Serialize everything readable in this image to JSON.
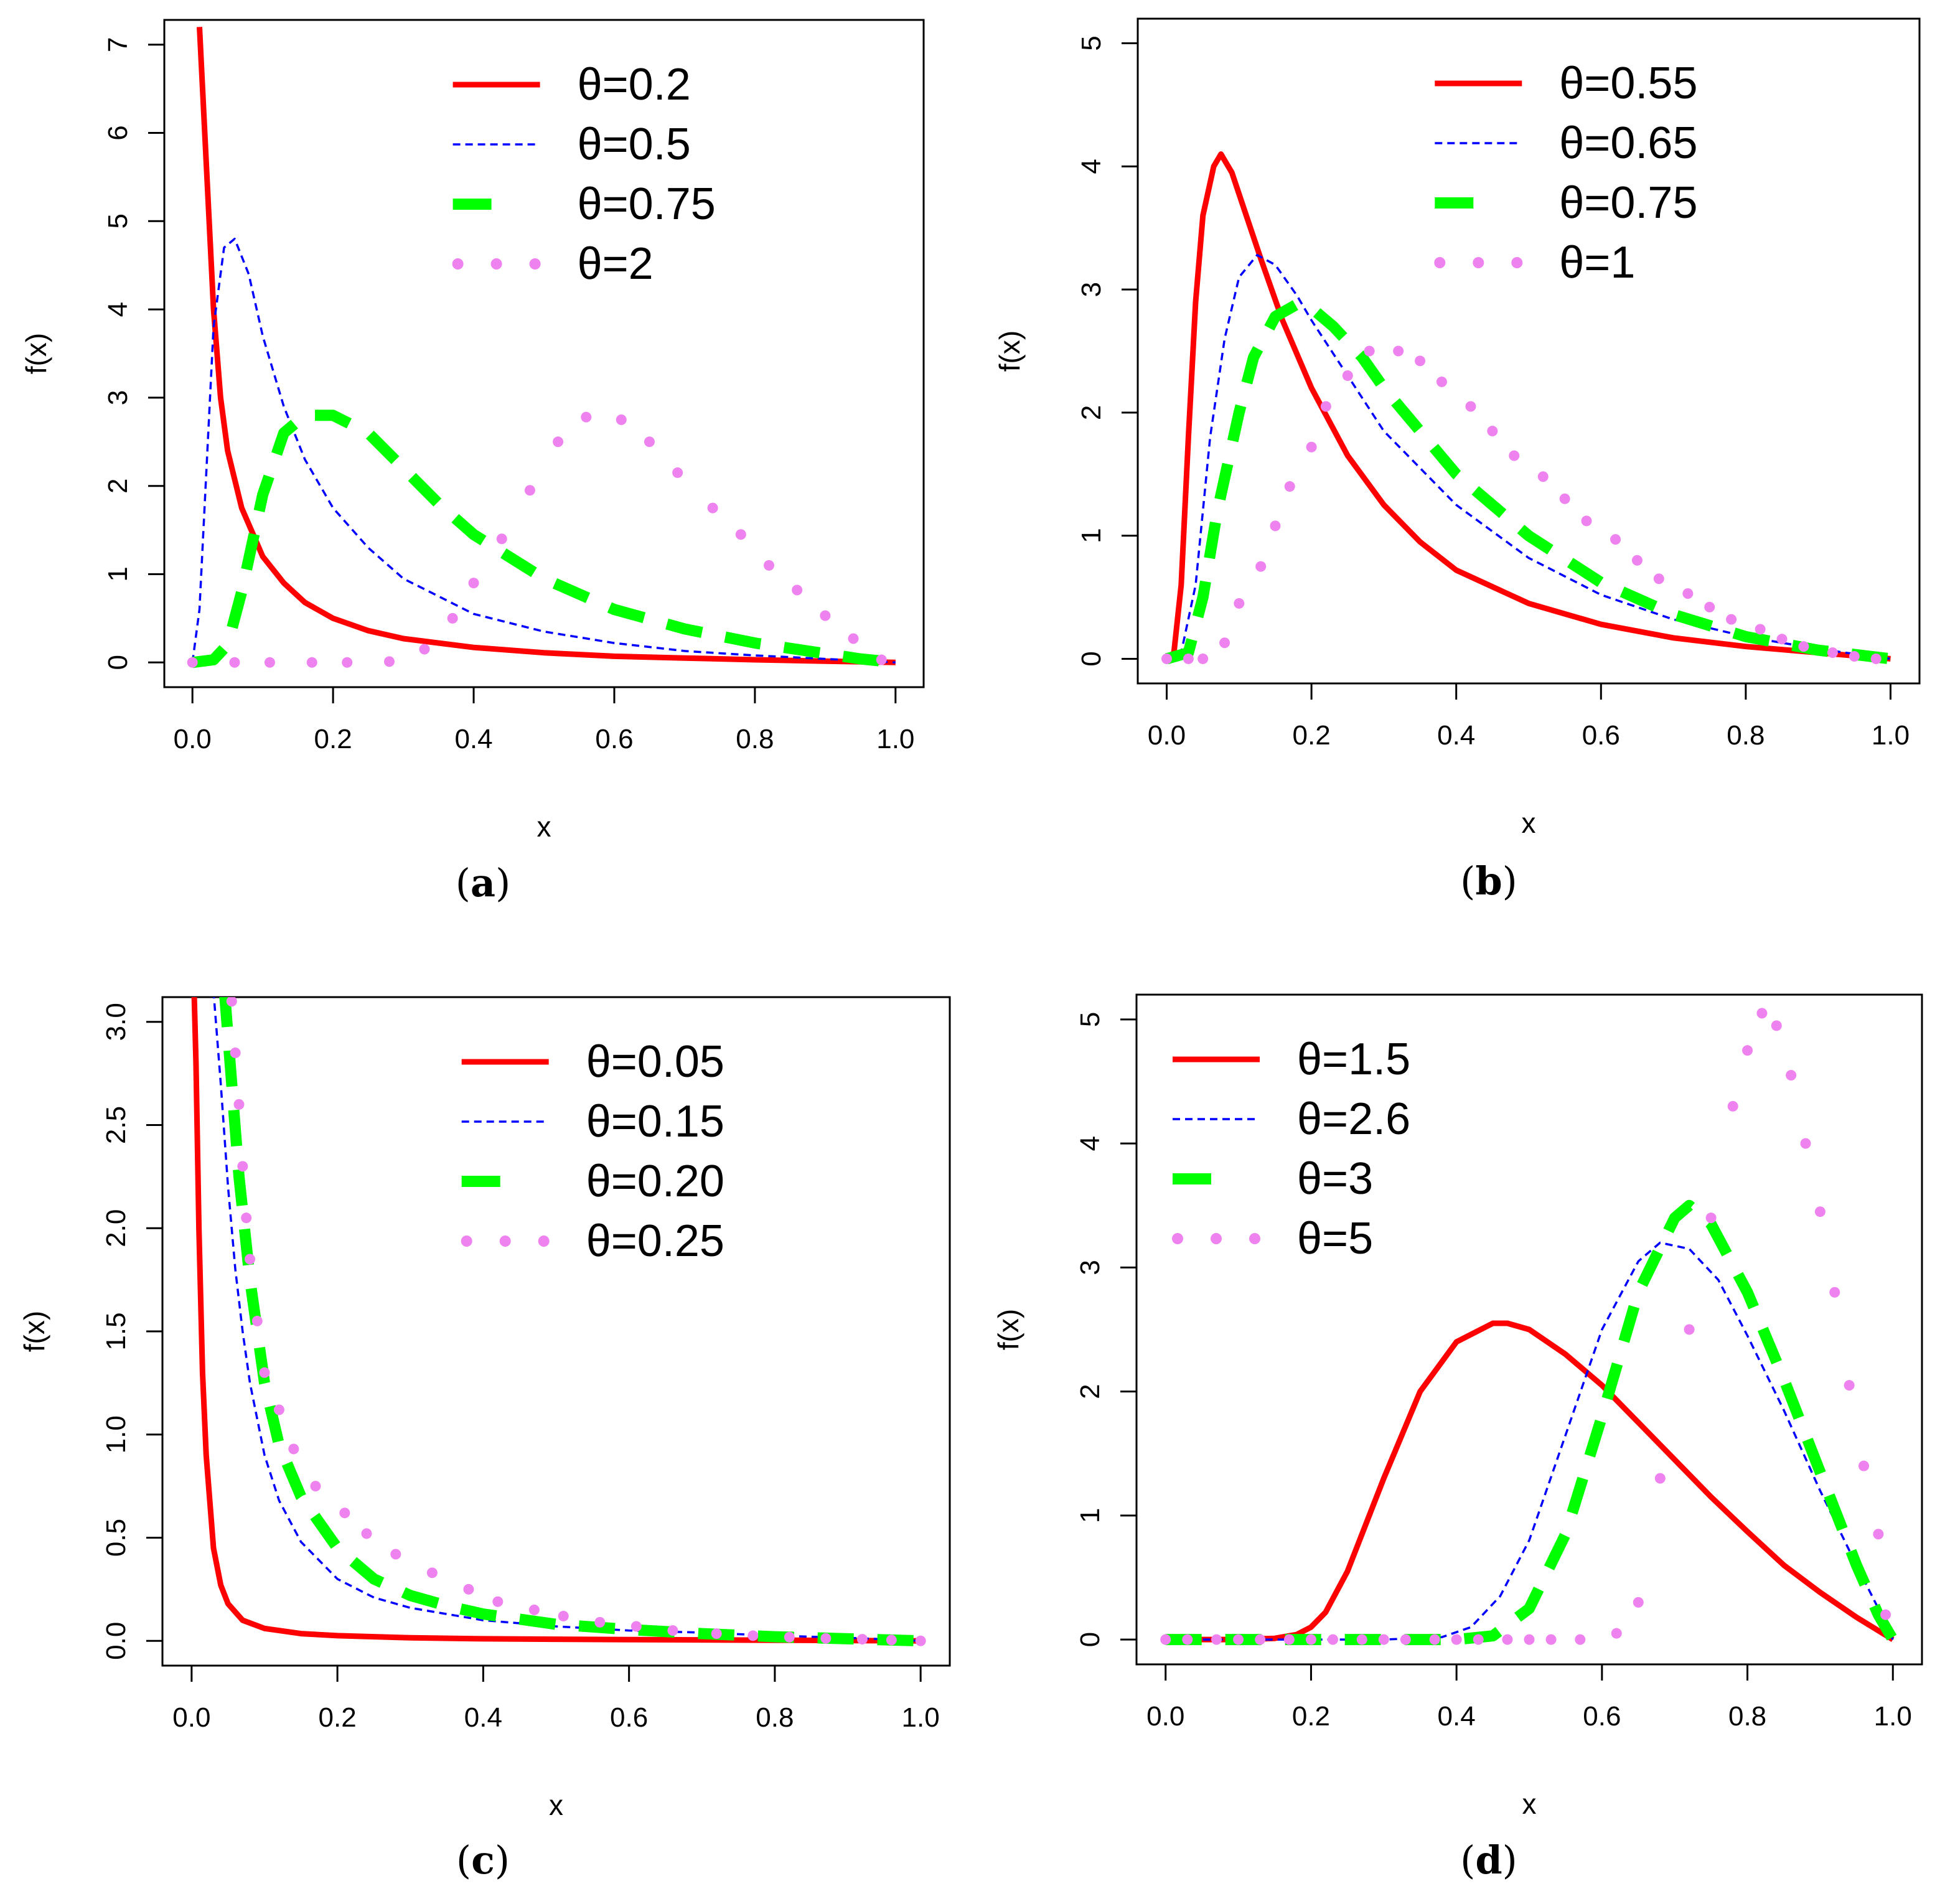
{
  "chart_data": [
    {
      "id": "a",
      "type": "line",
      "caption_letter": "a",
      "xlabel": "x",
      "ylabel": "f(x)",
      "xlim": [
        0,
        1
      ],
      "ylim": [
        0,
        7
      ],
      "x_ticks": [
        "0.0",
        "0.2",
        "0.4",
        "0.6",
        "0.8",
        "1.0"
      ],
      "y_ticks": [
        "0",
        "1",
        "2",
        "3",
        "4",
        "5",
        "6",
        "7"
      ],
      "legend_position": "top-right",
      "series": [
        {
          "name": "θ=0.2",
          "style": "solid",
          "color": "#ff0000",
          "x": [
            0.01,
            0.02,
            0.03,
            0.04,
            0.05,
            0.07,
            0.1,
            0.13,
            0.16,
            0.2,
            0.25,
            0.3,
            0.4,
            0.5,
            0.6,
            0.7,
            0.8,
            0.9,
            1.0
          ],
          "y": [
            7.2,
            5.6,
            4.0,
            3.0,
            2.4,
            1.75,
            1.2,
            0.9,
            0.68,
            0.5,
            0.36,
            0.27,
            0.17,
            0.11,
            0.07,
            0.05,
            0.03,
            0.015,
            0.0
          ]
        },
        {
          "name": "θ=0.5",
          "style": "dotted",
          "color": "#0000ff",
          "x": [
            0.0,
            0.01,
            0.02,
            0.03,
            0.045,
            0.06,
            0.08,
            0.1,
            0.13,
            0.16,
            0.2,
            0.25,
            0.3,
            0.4,
            0.5,
            0.6,
            0.7,
            0.8,
            0.9,
            1.0
          ],
          "y": [
            0.0,
            0.6,
            2.2,
            3.8,
            4.7,
            4.8,
            4.4,
            3.7,
            2.9,
            2.3,
            1.75,
            1.3,
            0.95,
            0.55,
            0.35,
            0.22,
            0.13,
            0.08,
            0.04,
            0.0
          ]
        },
        {
          "name": "θ=0.75",
          "style": "dashed",
          "color": "#00ff00",
          "x": [
            0.0,
            0.03,
            0.05,
            0.07,
            0.1,
            0.13,
            0.16,
            0.2,
            0.25,
            0.3,
            0.35,
            0.4,
            0.5,
            0.6,
            0.7,
            0.8,
            0.9,
            0.95,
            1.0
          ],
          "y": [
            0.0,
            0.03,
            0.2,
            0.8,
            1.9,
            2.6,
            2.8,
            2.8,
            2.6,
            2.2,
            1.8,
            1.45,
            0.95,
            0.6,
            0.38,
            0.22,
            0.1,
            0.04,
            0.0
          ]
        },
        {
          "name": "θ=2",
          "style": "dots",
          "color": "#ee82ee",
          "x": [
            0.0,
            0.06,
            0.11,
            0.17,
            0.22,
            0.28,
            0.33,
            0.37,
            0.4,
            0.44,
            0.48,
            0.52,
            0.56,
            0.61,
            0.65,
            0.69,
            0.74,
            0.78,
            0.82,
            0.86,
            0.9,
            0.94,
            0.98
          ],
          "y": [
            0.0,
            0.0,
            0.0,
            0.0,
            0.0,
            0.01,
            0.15,
            0.5,
            0.9,
            1.4,
            1.95,
            2.5,
            2.78,
            2.75,
            2.5,
            2.15,
            1.75,
            1.45,
            1.1,
            0.82,
            0.53,
            0.27,
            0.03
          ]
        }
      ]
    },
    {
      "id": "b",
      "type": "line",
      "caption_letter": "b",
      "xlabel": "x",
      "ylabel": "f(x)",
      "xlim": [
        0,
        1
      ],
      "ylim": [
        0,
        5
      ],
      "x_ticks": [
        "0.0",
        "0.2",
        "0.4",
        "0.6",
        "0.8",
        "1.0"
      ],
      "y_ticks": [
        "0",
        "1",
        "2",
        "3",
        "4",
        "5"
      ],
      "legend_position": "top-right",
      "series": [
        {
          "name": "θ=0.55",
          "style": "solid",
          "color": "#ff0000",
          "x": [
            0.0,
            0.01,
            0.02,
            0.03,
            0.04,
            0.05,
            0.065,
            0.075,
            0.09,
            0.11,
            0.13,
            0.16,
            0.2,
            0.25,
            0.3,
            0.35,
            0.4,
            0.5,
            0.6,
            0.7,
            0.8,
            0.9,
            1.0
          ],
          "y": [
            0.0,
            0.05,
            0.6,
            1.8,
            2.9,
            3.6,
            4.0,
            4.1,
            3.95,
            3.6,
            3.25,
            2.75,
            2.2,
            1.65,
            1.25,
            0.95,
            0.72,
            0.45,
            0.28,
            0.17,
            0.1,
            0.05,
            0.0
          ]
        },
        {
          "name": "θ=0.65",
          "style": "dotted",
          "color": "#0000ff",
          "x": [
            0.0,
            0.02,
            0.04,
            0.06,
            0.08,
            0.1,
            0.125,
            0.15,
            0.18,
            0.2,
            0.25,
            0.3,
            0.4,
            0.5,
            0.6,
            0.7,
            0.8,
            0.9,
            1.0
          ],
          "y": [
            0.0,
            0.05,
            0.6,
            1.8,
            2.6,
            3.1,
            3.28,
            3.2,
            2.95,
            2.75,
            2.3,
            1.85,
            1.25,
            0.82,
            0.52,
            0.32,
            0.18,
            0.08,
            0.0
          ]
        },
        {
          "name": "θ=0.75",
          "style": "dashed",
          "color": "#00ff00",
          "x": [
            0.0,
            0.03,
            0.05,
            0.07,
            0.1,
            0.12,
            0.15,
            0.18,
            0.2,
            0.23,
            0.27,
            0.3,
            0.35,
            0.4,
            0.5,
            0.6,
            0.7,
            0.8,
            0.9,
            1.0
          ],
          "y": [
            0.0,
            0.05,
            0.5,
            1.2,
            2.0,
            2.45,
            2.78,
            2.88,
            2.85,
            2.7,
            2.45,
            2.2,
            1.85,
            1.5,
            1.0,
            0.62,
            0.36,
            0.18,
            0.07,
            0.0
          ]
        },
        {
          "name": "θ=1",
          "style": "dots",
          "color": "#ee82ee",
          "x": [
            0.0,
            0.03,
            0.05,
            0.08,
            0.1,
            0.13,
            0.15,
            0.17,
            0.2,
            0.22,
            0.25,
            0.28,
            0.32,
            0.35,
            0.38,
            0.42,
            0.45,
            0.48,
            0.52,
            0.55,
            0.58,
            0.62,
            0.65,
            0.68,
            0.72,
            0.75,
            0.78,
            0.82,
            0.85,
            0.88,
            0.92,
            0.95,
            0.98
          ],
          "y": [
            0.0,
            0.0,
            0.0,
            0.13,
            0.45,
            0.75,
            1.08,
            1.4,
            1.72,
            2.05,
            2.3,
            2.5,
            2.5,
            2.42,
            2.25,
            2.05,
            1.85,
            1.65,
            1.48,
            1.3,
            1.12,
            0.97,
            0.8,
            0.65,
            0.53,
            0.42,
            0.32,
            0.24,
            0.16,
            0.1,
            0.05,
            0.02,
            0.0
          ]
        }
      ]
    },
    {
      "id": "c",
      "type": "line",
      "caption_letter": "c",
      "xlabel": "x",
      "ylabel": "f(x)",
      "xlim": [
        0,
        1
      ],
      "ylim": [
        0,
        3
      ],
      "x_ticks": [
        "0.0",
        "0.2",
        "0.4",
        "0.6",
        "0.8",
        "1.0"
      ],
      "y_ticks": [
        "0.0",
        "0.5",
        "1.0",
        "1.5",
        "2.0",
        "2.5",
        "3.0"
      ],
      "legend_position": "top-right",
      "series": [
        {
          "name": "θ=0.05",
          "style": "solid",
          "color": "#ff0000",
          "x": [
            0.003,
            0.006,
            0.01,
            0.015,
            0.02,
            0.03,
            0.04,
            0.05,
            0.07,
            0.1,
            0.15,
            0.2,
            0.3,
            0.4,
            0.5,
            0.6,
            0.8,
            1.0
          ],
          "y": [
            3.2,
            2.8,
            2.0,
            1.3,
            0.9,
            0.45,
            0.27,
            0.18,
            0.1,
            0.06,
            0.035,
            0.025,
            0.015,
            0.01,
            0.008,
            0.006,
            0.003,
            0.0
          ]
        },
        {
          "name": "θ=0.15",
          "style": "dotted",
          "color": "#0000ff",
          "x": [
            0.03,
            0.04,
            0.05,
            0.06,
            0.07,
            0.08,
            0.1,
            0.12,
            0.15,
            0.2,
            0.25,
            0.3,
            0.4,
            0.5,
            0.6,
            0.7,
            0.8,
            0.9,
            1.0
          ],
          "y": [
            3.15,
            2.7,
            2.2,
            1.8,
            1.5,
            1.25,
            0.9,
            0.68,
            0.48,
            0.3,
            0.21,
            0.16,
            0.1,
            0.07,
            0.05,
            0.04,
            0.025,
            0.015,
            0.0
          ]
        },
        {
          "name": "θ=0.20",
          "style": "dashed",
          "color": "#00ff00",
          "x": [
            0.045,
            0.055,
            0.065,
            0.08,
            0.1,
            0.12,
            0.15,
            0.2,
            0.25,
            0.3,
            0.35,
            0.4,
            0.5,
            0.6,
            0.7,
            0.8,
            0.9,
            1.0
          ],
          "y": [
            3.15,
            2.7,
            2.25,
            1.75,
            1.25,
            0.95,
            0.7,
            0.45,
            0.3,
            0.22,
            0.17,
            0.13,
            0.08,
            0.055,
            0.035,
            0.02,
            0.01,
            0.0
          ]
        },
        {
          "name": "θ=0.25",
          "style": "dots",
          "color": "#ee82ee",
          "x": [
            0.055,
            0.06,
            0.065,
            0.07,
            0.075,
            0.08,
            0.09,
            0.1,
            0.12,
            0.14,
            0.17,
            0.21,
            0.24,
            0.28,
            0.33,
            0.38,
            0.42,
            0.47,
            0.51,
            0.56,
            0.61,
            0.66,
            0.72,
            0.77,
            0.82,
            0.87,
            0.92,
            0.96,
            1.0
          ],
          "y": [
            3.1,
            2.85,
            2.6,
            2.3,
            2.05,
            1.85,
            1.55,
            1.3,
            1.12,
            0.93,
            0.75,
            0.62,
            0.52,
            0.42,
            0.33,
            0.25,
            0.19,
            0.15,
            0.12,
            0.09,
            0.07,
            0.05,
            0.035,
            0.025,
            0.018,
            0.012,
            0.008,
            0.004,
            0.0
          ]
        }
      ]
    },
    {
      "id": "d",
      "type": "line",
      "caption_letter": "d",
      "xlabel": "x",
      "ylabel": "f(x)",
      "xlim": [
        0,
        1
      ],
      "ylim": [
        0,
        5
      ],
      "x_ticks": [
        "0.0",
        "0.2",
        "0.4",
        "0.6",
        "0.8",
        "1.0"
      ],
      "y_ticks": [
        "0",
        "1",
        "2",
        "3",
        "4",
        "5"
      ],
      "legend_position": "top-left",
      "series": [
        {
          "name": "θ=1.5",
          "style": "solid",
          "color": "#ff0000",
          "x": [
            0.0,
            0.1,
            0.15,
            0.18,
            0.2,
            0.22,
            0.25,
            0.3,
            0.35,
            0.4,
            0.45,
            0.47,
            0.5,
            0.55,
            0.6,
            0.65,
            0.7,
            0.75,
            0.8,
            0.85,
            0.9,
            0.95,
            1.0
          ],
          "y": [
            0.0,
            0.0,
            0.01,
            0.04,
            0.1,
            0.22,
            0.55,
            1.3,
            2.0,
            2.4,
            2.55,
            2.55,
            2.5,
            2.3,
            2.05,
            1.75,
            1.45,
            1.15,
            0.87,
            0.6,
            0.38,
            0.18,
            0.0
          ]
        },
        {
          "name": "θ=2.6",
          "style": "dotted",
          "color": "#0000ff",
          "x": [
            0.0,
            0.2,
            0.3,
            0.38,
            0.42,
            0.46,
            0.5,
            0.55,
            0.6,
            0.65,
            0.68,
            0.72,
            0.76,
            0.8,
            0.85,
            0.9,
            0.95,
            0.98,
            1.0
          ],
          "y": [
            0.0,
            0.0,
            0.0,
            0.02,
            0.1,
            0.35,
            0.8,
            1.65,
            2.5,
            3.05,
            3.2,
            3.15,
            2.9,
            2.45,
            1.85,
            1.2,
            0.6,
            0.25,
            0.0
          ]
        },
        {
          "name": "θ=3",
          "style": "dashed",
          "color": "#00ff00",
          "x": [
            0.0,
            0.2,
            0.3,
            0.4,
            0.45,
            0.5,
            0.55,
            0.6,
            0.65,
            0.7,
            0.72,
            0.75,
            0.8,
            0.85,
            0.9,
            0.95,
            0.98,
            1.0
          ],
          "y": [
            0.0,
            0.0,
            0.0,
            0.0,
            0.03,
            0.25,
            0.85,
            1.8,
            2.8,
            3.4,
            3.5,
            3.35,
            2.8,
            2.1,
            1.35,
            0.6,
            0.2,
            0.0
          ]
        },
        {
          "name": "θ=5",
          "style": "dots",
          "color": "#ee82ee",
          "x": [
            0.0,
            0.03,
            0.07,
            0.1,
            0.13,
            0.17,
            0.2,
            0.23,
            0.27,
            0.3,
            0.33,
            0.37,
            0.4,
            0.43,
            0.47,
            0.5,
            0.53,
            0.57,
            0.62,
            0.65,
            0.68,
            0.72,
            0.75,
            0.78,
            0.8,
            0.82,
            0.84,
            0.86,
            0.88,
            0.9,
            0.92,
            0.94,
            0.96,
            0.98,
            0.99
          ],
          "y": [
            0.0,
            0.0,
            0.0,
            0.0,
            0.0,
            0.0,
            0.0,
            0.0,
            0.0,
            0.0,
            0.0,
            0.0,
            0.0,
            0.0,
            0.0,
            0.0,
            0.0,
            0.0,
            0.05,
            0.3,
            1.3,
            2.5,
            3.4,
            4.3,
            4.75,
            5.05,
            4.95,
            4.55,
            4.0,
            3.45,
            2.8,
            2.05,
            1.4,
            0.85,
            0.2
          ]
        }
      ]
    }
  ]
}
